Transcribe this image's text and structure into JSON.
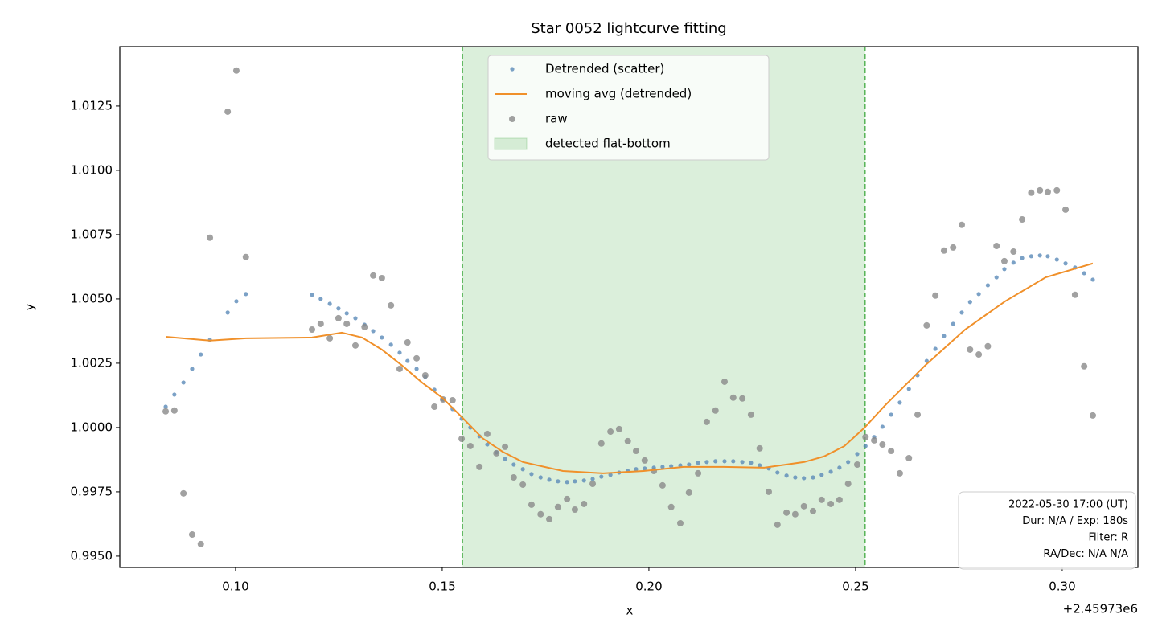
{
  "chart_data": {
    "type": "scatter",
    "title": "Star 0052 lightcurve fitting",
    "x_label": "x",
    "y_label": "y",
    "x_offset_label": "+2.45973e6",
    "xlim": [
      0.072,
      0.3183
    ],
    "ylim": [
      0.99456,
      1.01481
    ],
    "xticks": [
      {
        "value": 0.1,
        "label": "0.10"
      },
      0.15,
      {
        "value": 0.2,
        "label": "0.20"
      },
      0.25,
      {
        "value": 0.3,
        "label": "0.30"
      }
    ],
    "yticks": [
      {
        "value": 0.995,
        "label": "0.9950"
      },
      0.9975,
      {
        "value": 1,
        "label": "1.0000"
      },
      1.0025,
      {
        "value": 1.005,
        "label": "1.0050"
      },
      1.0075,
      {
        "value": 1.01,
        "label": "1.0100"
      },
      1.0125
    ],
    "legend": "upper center",
    "x": [
      0.0831,
      0.0852,
      0.0874,
      0.0895,
      0.0916,
      0.0938,
      0.0981,
      0.1002,
      0.1025,
      0.1185,
      0.1206,
      0.1228,
      0.1249,
      0.1269,
      0.129,
      0.1312,
      0.1333,
      0.1354,
      0.1376,
      0.1397,
      0.1416,
      0.1438,
      0.1459,
      0.1481,
      0.1502,
      0.1525,
      0.1547,
      0.1568,
      0.159,
      0.1609,
      0.1631,
      0.1652,
      0.1673,
      0.1695,
      0.1716,
      0.1738,
      0.1759,
      0.178,
      0.1802,
      0.1821,
      0.1843,
      0.1864,
      0.1885,
      0.1907,
      0.1928,
      0.1949,
      0.1969,
      0.199,
      0.2012,
      0.2033,
      0.2054,
      0.2076,
      0.2097,
      0.2119,
      0.214,
      0.2161,
      0.2183,
      0.2204,
      0.2226,
      0.2247,
      0.2268,
      0.229,
      0.2311,
      0.2333,
      0.2354,
      0.2375,
      0.2397,
      0.2418,
      0.244,
      0.2461,
      0.2482,
      0.2504,
      0.2524,
      0.2545,
      0.2565,
      0.2586,
      0.2607,
      0.2629,
      0.265,
      0.2672,
      0.2693,
      0.2714,
      0.2736,
      0.2757,
      0.2777,
      0.2798,
      0.282,
      0.2841,
      0.286,
      0.2882,
      0.2903,
      0.2925,
      0.2946,
      0.2965,
      0.2987,
      0.3008,
      0.3031,
      0.3053,
      0.3074
    ],
    "series": [
      {
        "name": "Detrended (scatter)",
        "mark": "scatter",
        "color": "#5a8ab8",
        "size": 2.6,
        "values": [
          1.00081,
          1.00128,
          1.00175,
          1.00228,
          1.00284,
          1.00341,
          1.00447,
          1.00491,
          1.00519,
          1.00516,
          1.005,
          1.00481,
          1.00463,
          1.00444,
          1.00425,
          1.004,
          1.00375,
          1.0035,
          1.00322,
          1.00291,
          1.00259,
          1.00228,
          1.00197,
          1.00147,
          1.00109,
          1.00072,
          1.00034,
          1.0,
          0.99966,
          0.99934,
          0.99903,
          0.99878,
          0.99856,
          0.99838,
          0.99819,
          0.99806,
          0.99797,
          0.99791,
          0.99788,
          0.99791,
          0.99794,
          0.998,
          0.99809,
          0.99816,
          0.99825,
          0.99831,
          0.99838,
          0.99841,
          0.99844,
          0.99847,
          0.9985,
          0.99853,
          0.99856,
          0.99863,
          0.99866,
          0.99869,
          0.99869,
          0.99869,
          0.99866,
          0.99863,
          0.99853,
          0.99841,
          0.99825,
          0.99813,
          0.99806,
          0.99803,
          0.99806,
          0.99816,
          0.99828,
          0.99844,
          0.99866,
          0.99897,
          0.99928,
          0.99963,
          1.00003,
          1.0005,
          1.00097,
          1.0015,
          1.00203,
          1.00259,
          1.00306,
          1.00356,
          1.00403,
          1.00447,
          1.00488,
          1.00519,
          1.00553,
          1.00584,
          1.00616,
          1.00641,
          1.00659,
          1.00666,
          1.00669,
          1.00666,
          1.00653,
          1.00638,
          1.00622,
          1.006,
          1.00575
        ]
      },
      {
        "name": "moving avg (detrended)",
        "mark": "line",
        "color": "#f0902a",
        "x": [
          0.0831,
          0.0938,
          0.1025,
          0.1185,
          0.1257,
          0.1306,
          0.1354,
          0.1403,
          0.1451,
          0.15,
          0.1549,
          0.1597,
          0.1646,
          0.1695,
          0.1792,
          0.1889,
          0.1987,
          0.2084,
          0.2181,
          0.2279,
          0.2376,
          0.2424,
          0.2473,
          0.2522,
          0.257,
          0.2668,
          0.2765,
          0.2862,
          0.296,
          0.3074
        ],
        "values": [
          1.00353,
          1.00338,
          1.00347,
          1.0035,
          1.00369,
          1.0035,
          1.00303,
          1.00241,
          1.00175,
          1.00116,
          1.00038,
          0.99959,
          0.99906,
          0.99866,
          0.99831,
          0.99822,
          0.99831,
          0.99847,
          0.99847,
          0.99844,
          0.99866,
          0.99888,
          0.99928,
          1.0,
          1.00084,
          1.00241,
          1.00381,
          1.00491,
          1.00584,
          1.00638
        ]
      },
      {
        "name": "raw",
        "mark": "scatter",
        "color": "#8a8a8a",
        "size": 4,
        "values": [
          1.00063,
          1.00066,
          0.99744,
          0.99584,
          0.99547,
          1.00738,
          1.01228,
          1.01388,
          1.00663,
          1.00381,
          1.00403,
          1.00347,
          1.00425,
          1.00403,
          1.00319,
          1.00391,
          1.00591,
          1.00581,
          1.00475,
          1.00228,
          1.00331,
          1.00269,
          1.00203,
          1.00081,
          1.00109,
          1.00106,
          0.99956,
          0.99928,
          0.99847,
          0.99975,
          0.999,
          0.99925,
          0.99806,
          0.99778,
          0.997,
          0.99663,
          0.99644,
          0.99691,
          0.99722,
          0.99681,
          0.99703,
          0.99781,
          0.99938,
          0.99984,
          0.99994,
          0.99947,
          0.99909,
          0.99872,
          0.99831,
          0.99775,
          0.99691,
          0.99628,
          0.99747,
          0.99822,
          1.00022,
          1.00066,
          1.00178,
          1.00116,
          1.00113,
          1.0005,
          0.99919,
          0.9975,
          0.99622,
          0.99669,
          0.99663,
          0.99694,
          0.99675,
          0.99719,
          0.99703,
          0.99719,
          0.99781,
          0.99856,
          0.99963,
          0.9995,
          0.99934,
          0.99909,
          0.99822,
          0.99881,
          1.0005,
          1.00397,
          1.00513,
          1.00688,
          1.007,
          1.00788,
          1.00303,
          1.00284,
          1.00316,
          1.00706,
          1.00647,
          1.00684,
          1.00809,
          1.00913,
          1.00922,
          1.00916,
          1.00922,
          1.00847,
          1.00516,
          1.00238,
          1.00047
        ]
      }
    ],
    "span": {
      "name": "detected flat-bottom",
      "x": [
        0.1549,
        0.2523
      ],
      "color": "#2ca02c"
    },
    "annotation": [
      "2022-05-30 17:00 (UT)",
      "Dur: N/A / Exp: 180s",
      "Filter: R",
      "RA/Dec: N/A N/A"
    ]
  }
}
